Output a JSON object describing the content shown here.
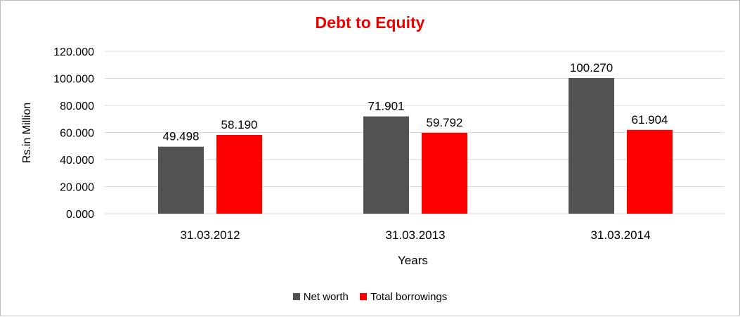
{
  "chart_data": {
    "type": "bar",
    "title": "Debt to Equity",
    "xlabel": "Years",
    "ylabel": "Rs.in Million",
    "categories": [
      "31.03.2012",
      "31.03.2013",
      "31.03.2014"
    ],
    "series": [
      {
        "name": "Net worth",
        "values": [
          49.498,
          71.901,
          100.27
        ],
        "labels": [
          "49.498",
          "71.901",
          "100.270"
        ],
        "color": "#525252"
      },
      {
        "name": "Total borrowings",
        "values": [
          58.19,
          59.792,
          61.904
        ],
        "labels": [
          "58.190",
          "59.792",
          "61.904"
        ],
        "color": "#ff0000"
      }
    ],
    "ylim": [
      0,
      120
    ],
    "yticks": [
      "0.000",
      "20.000",
      "40.000",
      "60.000",
      "80.000",
      "100.000",
      "120.000"
    ],
    "grid": true,
    "legend_position": "bottom",
    "title_color": "#ee0000"
  }
}
